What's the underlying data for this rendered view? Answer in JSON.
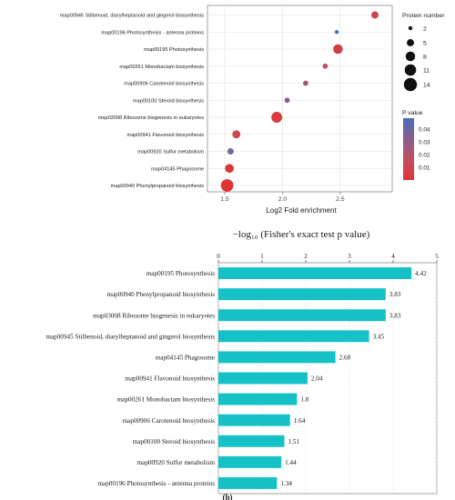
{
  "chart_data": [
    {
      "type": "scatter",
      "title": "",
      "xlabel": "Log2 Fold enrichment",
      "ylabel": "",
      "xlim": [
        1.35,
        2.95
      ],
      "xticks": [
        1.5,
        2.0,
        2.5
      ],
      "xtick_labels": [
        "1.5",
        "2.0",
        "2.5"
      ],
      "grid": true,
      "legend_position": "right",
      "size_legend": {
        "title": "Protein number",
        "values": [
          2,
          5,
          8,
          11,
          14
        ],
        "labels": [
          "2",
          "5",
          "8",
          "11",
          "14"
        ]
      },
      "color_legend": {
        "title": "P value",
        "stops": [
          "#4a6fb5",
          "#8a5e8e",
          "#c05062",
          "#dd3535"
        ],
        "ticks": [
          0.04,
          0.03,
          0.02,
          0.01
        ],
        "labels": [
          "0.04",
          "0.03",
          "0.02",
          "0.01"
        ]
      },
      "categories": [
        "map00945 Stilbenoid, diarylheptanoid and gingerol biosynthesis",
        "map00196 Photosynthesis - antenna proteins",
        "map00195 Photosynthesis",
        "map00261 Monobactam biosynthesis",
        "map00906 Carotenoid biosynthesis",
        "map00100 Steroid biosynthesis",
        "map03008 Ribosome biogenesis in eukaryotes",
        "map00941 Flavonoid biosynthesis",
        "map00920 Sulfur metabolism",
        "map04145 Phagosome",
        "map00940 Phenylpropanoid biosynthesis"
      ],
      "points": [
        {
          "label": "map00945 Stilbenoid, diarylheptanoid and gingerol biosynthesis",
          "x": 2.8,
          "protein_number": 5,
          "p_value": 0.008
        },
        {
          "label": "map00196 Photosynthesis - antenna proteins",
          "x": 2.47,
          "protein_number": 2,
          "p_value": 0.045
        },
        {
          "label": "map00195 Photosynthesis",
          "x": 2.48,
          "protein_number": 8,
          "p_value": 0.006
        },
        {
          "label": "map00261 Monobactam biosynthesis",
          "x": 2.37,
          "protein_number": 3,
          "p_value": 0.016
        },
        {
          "label": "map00906 Carotenoid biosynthesis",
          "x": 2.2,
          "protein_number": 3,
          "p_value": 0.022
        },
        {
          "label": "map00100 Steroid biosynthesis",
          "x": 2.04,
          "protein_number": 3,
          "p_value": 0.032
        },
        {
          "label": "map03008 Ribosome biogenesis in eukaryotes",
          "x": 1.95,
          "protein_number": 10,
          "p_value": 0.004
        },
        {
          "label": "map00941 Flavonoid biosynthesis",
          "x": 1.6,
          "protein_number": 6,
          "p_value": 0.009
        },
        {
          "label": "map00920 Sulfur metabolism",
          "x": 1.55,
          "protein_number": 4,
          "p_value": 0.036
        },
        {
          "label": "map04145 Phagosome",
          "x": 1.54,
          "protein_number": 7,
          "p_value": 0.002
        },
        {
          "label": "map00940 Phenylpropanoid biosynthesis",
          "x": 1.52,
          "protein_number": 13,
          "p_value": 0.001
        }
      ]
    },
    {
      "type": "bar",
      "orientation": "horizontal",
      "title": "",
      "xlabel": "−log₁₀ (Fisher's exact test p value)",
      "ylabel": "",
      "xlim": [
        0,
        5
      ],
      "xticks": [
        0,
        1,
        2,
        3,
        4,
        5
      ],
      "xtick_labels": [
        "0",
        "1",
        "2",
        "3",
        "4",
        "5"
      ],
      "grid": true,
      "bar_color": "#13c1c6",
      "categories": [
        "map00195 Photosynthesis",
        "map00940 Phenylpropanoid biosynthesis",
        "map03008 Ribosome biogenesis in eukaryotes",
        "map00945 Stilbenoid, diarylheptanoid and gingerol biosynthesis",
        "map04145 Phagosome",
        "map00941 Flavonoid biosynthesis",
        "map00261 Monobactam biosynthesis",
        "map00906 Carotenoid biosynthesis",
        "map00100 Steroid biosynthesis",
        "map00920 Sulfur metabolism",
        "map00196 Photosynthesis - antenna proteins"
      ],
      "values": [
        4.42,
        3.83,
        3.83,
        3.45,
        2.68,
        2.04,
        1.8,
        1.64,
        1.51,
        1.44,
        1.34
      ],
      "value_labels": [
        "4.42",
        "3.83",
        "3.83",
        "3.45",
        "2.68",
        "2.04",
        "1.8",
        "1.64",
        "1.51",
        "1.44",
        "1.34"
      ]
    }
  ],
  "panel_label": "(b)"
}
